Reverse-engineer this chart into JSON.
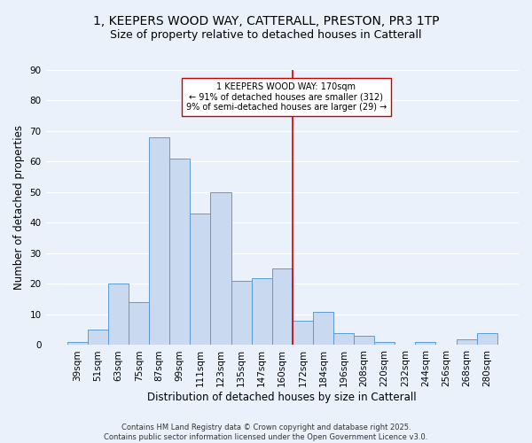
{
  "title_line1": "1, KEEPERS WOOD WAY, CATTERALL, PRESTON, PR3 1TP",
  "title_line2": "Size of property relative to detached houses in Catterall",
  "xlabel": "Distribution of detached houses by size in Catterall",
  "ylabel": "Number of detached properties",
  "footer": "Contains HM Land Registry data © Crown copyright and database right 2025.\nContains public sector information licensed under the Open Government Licence v3.0.",
  "bin_labels": [
    "39sqm",
    "51sqm",
    "63sqm",
    "75sqm",
    "87sqm",
    "99sqm",
    "111sqm",
    "123sqm",
    "135sqm",
    "147sqm",
    "160sqm",
    "172sqm",
    "184sqm",
    "196sqm",
    "208sqm",
    "220sqm",
    "232sqm",
    "244sqm",
    "256sqm",
    "268sqm",
    "280sqm"
  ],
  "bar_values": [
    1,
    5,
    20,
    14,
    68,
    61,
    43,
    50,
    21,
    22,
    25,
    8,
    11,
    4,
    3,
    1,
    0,
    1,
    0,
    2,
    4
  ],
  "bar_color": "#c9d9f0",
  "bar_edge_color": "#5b9bd5",
  "vline_x": 10.5,
  "vline_color": "#cc0000",
  "annotation_text": "1 KEEPERS WOOD WAY: 170sqm\n← 91% of detached houses are smaller (312)\n9% of semi-detached houses are larger (29) →",
  "ylim": [
    0,
    90
  ],
  "yticks": [
    0,
    10,
    20,
    30,
    40,
    50,
    60,
    70,
    80,
    90
  ],
  "bg_color": "#eaf1fb",
  "plot_bg_color": "#eaf1fb",
  "grid_color": "#ffffff",
  "title_fontsize": 10,
  "subtitle_fontsize": 9,
  "tick_fontsize": 7.5,
  "label_fontsize": 8.5,
  "footer_fontsize": 6
}
